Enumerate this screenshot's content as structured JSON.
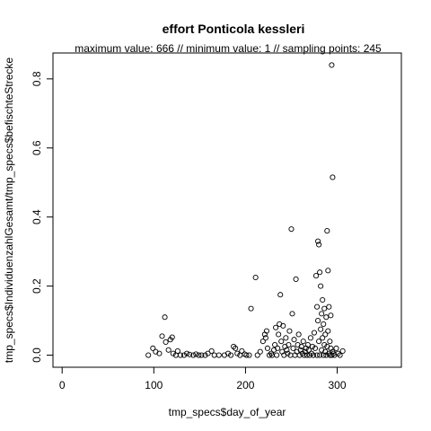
{
  "chart_data": {
    "type": "scatter",
    "title": "effort Ponticola kessleri",
    "subtitle": "maximum value: 666  //  minimum value: 1  // sampling points: 245",
    "xlabel": "tmp_specs$day_of_year",
    "ylabel": "tmp_specs$IndividuenzahlGesamt/tmp_specs$befischteStrecke",
    "xlim": [
      -10,
      370
    ],
    "ylim": [
      -0.035,
      0.875
    ],
    "x_ticks": [
      0,
      100,
      200,
      300
    ],
    "y_ticks": [
      0.0,
      0.2,
      0.4,
      0.6,
      0.8
    ],
    "x_tick_labels": [
      "0",
      "100",
      "200",
      "300"
    ],
    "y_tick_labels": [
      "0.0",
      "0.2",
      "0.4",
      "0.6",
      "0.8"
    ],
    "point_style": "open-circle",
    "grid": false,
    "points": [
      {
        "x": 94,
        "y": 0.0
      },
      {
        "x": 99,
        "y": 0.02
      },
      {
        "x": 102,
        "y": 0.01
      },
      {
        "x": 106,
        "y": 0.005
      },
      {
        "x": 109,
        "y": 0.055
      },
      {
        "x": 112,
        "y": 0.11
      },
      {
        "x": 113,
        "y": 0.038
      },
      {
        "x": 116,
        "y": 0.015
      },
      {
        "x": 118,
        "y": 0.045
      },
      {
        "x": 120,
        "y": 0.052
      },
      {
        "x": 121,
        "y": 0.005
      },
      {
        "x": 124,
        "y": 0.0
      },
      {
        "x": 126,
        "y": 0.012
      },
      {
        "x": 129,
        "y": 0.0
      },
      {
        "x": 133,
        "y": 0.0
      },
      {
        "x": 136,
        "y": 0.005
      },
      {
        "x": 139,
        "y": 0.002
      },
      {
        "x": 143,
        "y": 0.0
      },
      {
        "x": 146,
        "y": 0.003
      },
      {
        "x": 149,
        "y": 0.0
      },
      {
        "x": 152,
        "y": 0.0
      },
      {
        "x": 156,
        "y": 0.0
      },
      {
        "x": 159,
        "y": 0.005
      },
      {
        "x": 163,
        "y": 0.012
      },
      {
        "x": 166,
        "y": 0.0
      },
      {
        "x": 171,
        "y": 0.0
      },
      {
        "x": 177,
        "y": 0.0
      },
      {
        "x": 181,
        "y": 0.005
      },
      {
        "x": 184,
        "y": 0.0
      },
      {
        "x": 187,
        "y": 0.025
      },
      {
        "x": 189,
        "y": 0.02
      },
      {
        "x": 191,
        "y": 0.005
      },
      {
        "x": 194,
        "y": 0.0
      },
      {
        "x": 196,
        "y": 0.012
      },
      {
        "x": 199,
        "y": 0.003
      },
      {
        "x": 201,
        "y": 0.0
      },
      {
        "x": 204,
        "y": 0.0
      },
      {
        "x": 206,
        "y": 0.135
      },
      {
        "x": 211,
        "y": 0.225
      },
      {
        "x": 213,
        "y": 0.0
      },
      {
        "x": 216,
        "y": 0.01
      },
      {
        "x": 219,
        "y": 0.04
      },
      {
        "x": 221,
        "y": 0.06
      },
      {
        "x": 222,
        "y": 0.05
      },
      {
        "x": 223,
        "y": 0.07
      },
      {
        "x": 224,
        "y": 0.02
      },
      {
        "x": 226,
        "y": 0.0
      },
      {
        "x": 228,
        "y": 0.005
      },
      {
        "x": 229,
        "y": 0.0
      },
      {
        "x": 231,
        "y": 0.015
      },
      {
        "x": 232,
        "y": 0.03
      },
      {
        "x": 233,
        "y": 0.08
      },
      {
        "x": 234,
        "y": 0.0
      },
      {
        "x": 235,
        "y": 0.02
      },
      {
        "x": 236,
        "y": 0.06
      },
      {
        "x": 237,
        "y": 0.09
      },
      {
        "x": 238,
        "y": 0.175
      },
      {
        "x": 239,
        "y": 0.04
      },
      {
        "x": 240,
        "y": 0.01
      },
      {
        "x": 241,
        "y": 0.085
      },
      {
        "x": 242,
        "y": 0.0
      },
      {
        "x": 243,
        "y": 0.025
      },
      {
        "x": 244,
        "y": 0.05
      },
      {
        "x": 245,
        "y": 0.015
      },
      {
        "x": 246,
        "y": 0.005
      },
      {
        "x": 247,
        "y": 0.03
      },
      {
        "x": 248,
        "y": 0.07
      },
      {
        "x": 249,
        "y": 0.0
      },
      {
        "x": 250,
        "y": 0.365
      },
      {
        "x": 251,
        "y": 0.12
      },
      {
        "x": 252,
        "y": 0.02
      },
      {
        "x": 253,
        "y": 0.045
      },
      {
        "x": 254,
        "y": 0.0
      },
      {
        "x": 255,
        "y": 0.22
      },
      {
        "x": 256,
        "y": 0.01
      },
      {
        "x": 257,
        "y": 0.03
      },
      {
        "x": 258,
        "y": 0.06
      },
      {
        "x": 259,
        "y": 0.0
      },
      {
        "x": 260,
        "y": 0.015
      },
      {
        "x": 261,
        "y": 0.025
      },
      {
        "x": 262,
        "y": 0.005
      },
      {
        "x": 263,
        "y": 0.04
      },
      {
        "x": 264,
        "y": 0.0
      },
      {
        "x": 265,
        "y": 0.01
      },
      {
        "x": 266,
        "y": 0.02
      },
      {
        "x": 267,
        "y": 0.0
      },
      {
        "x": 268,
        "y": 0.03
      },
      {
        "x": 269,
        "y": 0.015
      },
      {
        "x": 270,
        "y": 0.0
      },
      {
        "x": 271,
        "y": 0.05
      },
      {
        "x": 272,
        "y": 0.005
      },
      {
        "x": 273,
        "y": 0.025
      },
      {
        "x": 274,
        "y": 0.0
      },
      {
        "x": 275,
        "y": 0.065
      },
      {
        "x": 276,
        "y": 0.02
      },
      {
        "x": 277,
        "y": 0.23
      },
      {
        "x": 278,
        "y": 0.0
      },
      {
        "x": 278,
        "y": 0.14
      },
      {
        "x": 279,
        "y": 0.1
      },
      {
        "x": 279,
        "y": 0.33
      },
      {
        "x": 280,
        "y": 0.32
      },
      {
        "x": 280,
        "y": 0.04
      },
      {
        "x": 281,
        "y": 0.24
      },
      {
        "x": 281,
        "y": 0.0
      },
      {
        "x": 282,
        "y": 0.2
      },
      {
        "x": 282,
        "y": 0.075
      },
      {
        "x": 283,
        "y": 0.12
      },
      {
        "x": 283,
        "y": 0.015
      },
      {
        "x": 284,
        "y": 0.16
      },
      {
        "x": 284,
        "y": 0.05
      },
      {
        "x": 285,
        "y": 0.09
      },
      {
        "x": 285,
        "y": 0.0
      },
      {
        "x": 286,
        "y": 0.03
      },
      {
        "x": 286,
        "y": 0.135
      },
      {
        "x": 287,
        "y": 0.06
      },
      {
        "x": 287,
        "y": 0.01
      },
      {
        "x": 288,
        "y": 0.11
      },
      {
        "x": 288,
        "y": 0.0
      },
      {
        "x": 289,
        "y": 0.36
      },
      {
        "x": 289,
        "y": 0.025
      },
      {
        "x": 290,
        "y": 0.245
      },
      {
        "x": 290,
        "y": 0.07
      },
      {
        "x": 291,
        "y": 0.005
      },
      {
        "x": 291,
        "y": 0.14
      },
      {
        "x": 292,
        "y": 0.04
      },
      {
        "x": 292,
        "y": 0.0
      },
      {
        "x": 293,
        "y": 0.115
      },
      {
        "x": 293,
        "y": 0.02
      },
      {
        "x": 294,
        "y": 0.84
      },
      {
        "x": 294,
        "y": 0.0
      },
      {
        "x": 295,
        "y": 0.515
      },
      {
        "x": 295,
        "y": 0.01
      },
      {
        "x": 296,
        "y": 0.005
      },
      {
        "x": 297,
        "y": 0.0
      },
      {
        "x": 299,
        "y": 0.02
      },
      {
        "x": 301,
        "y": 0.005
      },
      {
        "x": 303,
        "y": 0.0
      },
      {
        "x": 306,
        "y": 0.012
      }
    ]
  }
}
